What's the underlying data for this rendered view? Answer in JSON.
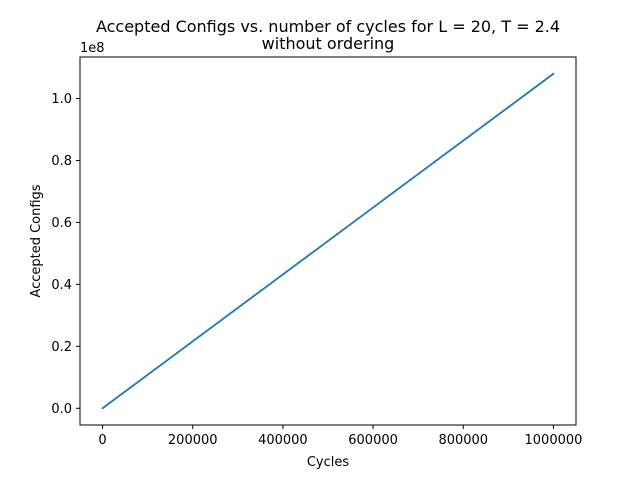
{
  "chart_data": {
    "type": "line",
    "title_line1": "Accepted Configs vs. number of cycles for L = 20, T = 2.4",
    "title_line2": "without ordering",
    "xlabel": "Cycles",
    "ylabel": "Accepted Configs",
    "y_offset_label": "1e8",
    "y_scale_factor": 100000000,
    "xlim": [
      -50000,
      1050000
    ],
    "ylim": [
      -0.054,
      1.134
    ],
    "x_ticks": [
      0,
      200000,
      400000,
      600000,
      800000,
      1000000
    ],
    "x_tick_labels": [
      "0",
      "200000",
      "400000",
      "600000",
      "800000",
      "1000000"
    ],
    "y_ticks": [
      0.0,
      0.2,
      0.4,
      0.6,
      0.8,
      1.0
    ],
    "y_tick_labels": [
      "0.0",
      "0.2",
      "0.4",
      "0.6",
      "0.8",
      "1.0"
    ],
    "grid": false,
    "series": [
      {
        "color": "#1f77b4",
        "x": [
          0,
          1000000
        ],
        "y": [
          0.0,
          1.08
        ]
      }
    ]
  }
}
